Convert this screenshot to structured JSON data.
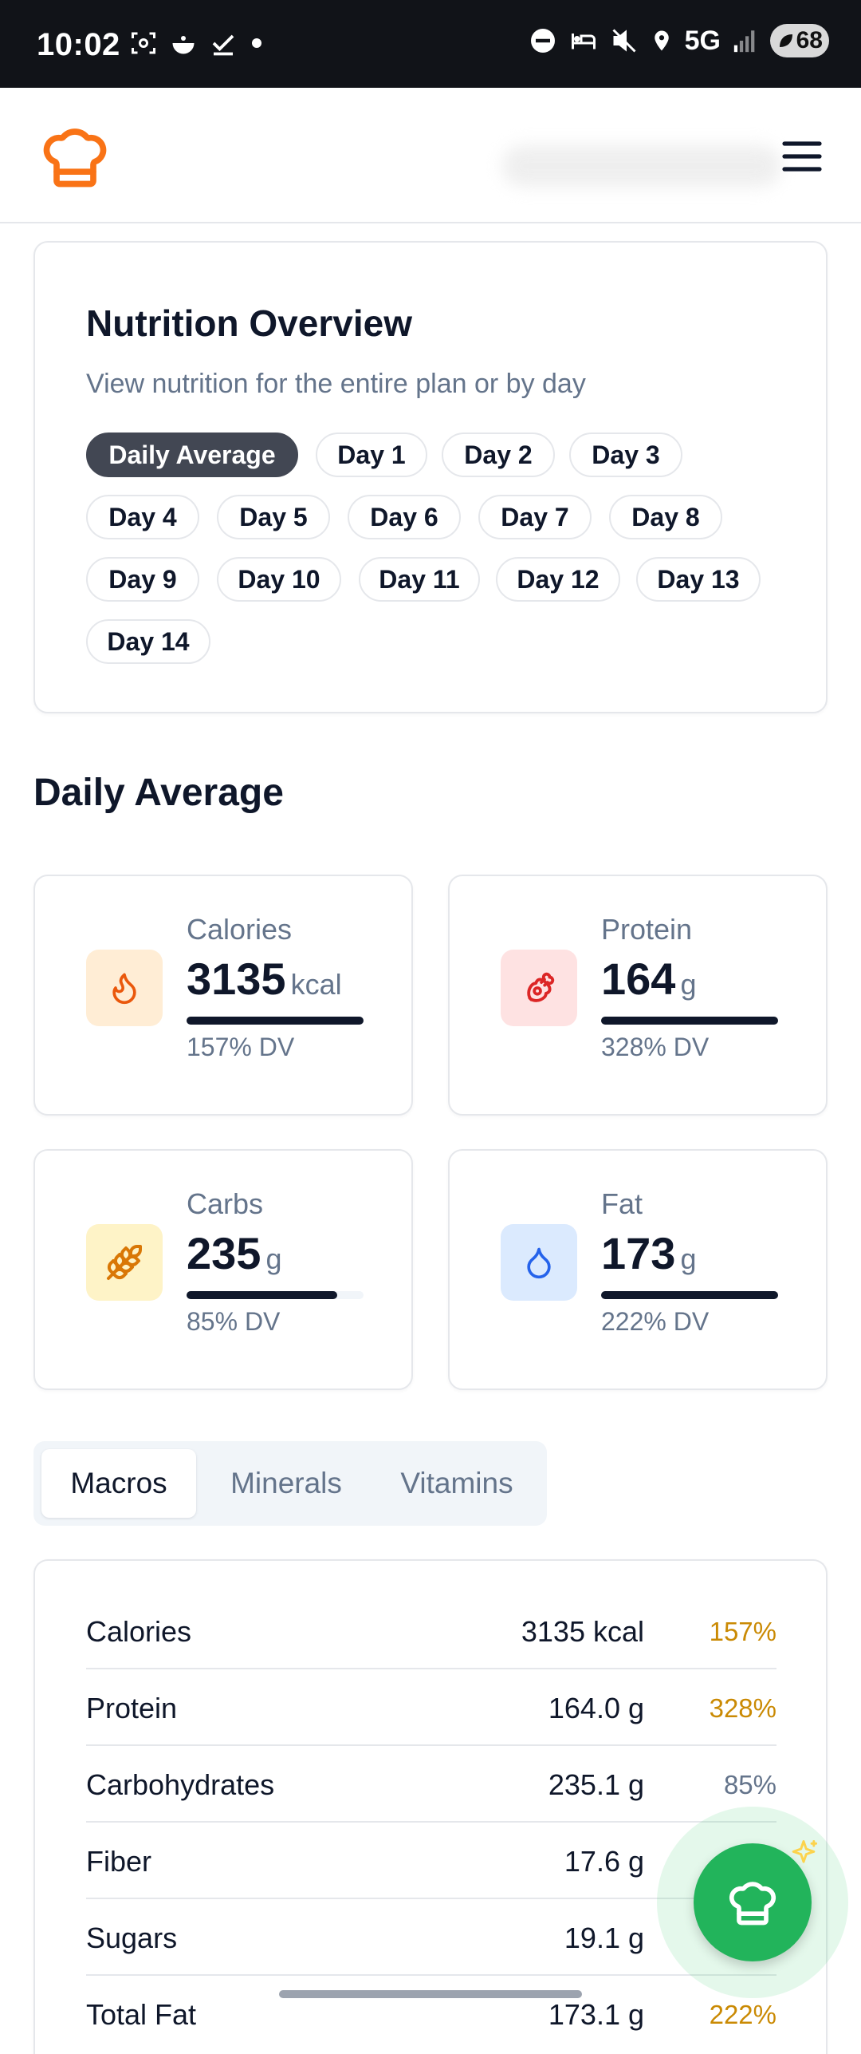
{
  "status_bar": {
    "time": "10:02",
    "network": "5G",
    "battery": "68"
  },
  "overview": {
    "title": "Nutrition Overview",
    "subtitle": "View nutrition for the entire plan or by day",
    "pills": [
      "Daily Average",
      "Day 1",
      "Day 2",
      "Day 3",
      "Day 4",
      "Day 5",
      "Day 6",
      "Day 7",
      "Day 8",
      "Day 9",
      "Day 10",
      "Day 11",
      "Day 12",
      "Day 13",
      "Day 14"
    ],
    "active_pill": "Daily Average"
  },
  "section_title": "Daily Average",
  "stats": {
    "calories": {
      "label": "Calories",
      "value": "3135",
      "unit": "kcal",
      "dv": "157% DV",
      "progress": 1.0
    },
    "protein": {
      "label": "Protein",
      "value": "164",
      "unit": "g",
      "dv": "328% DV",
      "progress": 1.0
    },
    "carbs": {
      "label": "Carbs",
      "value": "235",
      "unit": "g",
      "dv": "85% DV",
      "progress": 0.85
    },
    "fat": {
      "label": "Fat",
      "value": "173",
      "unit": "g",
      "dv": "222% DV",
      "progress": 1.0
    }
  },
  "tabs": {
    "macros": "Macros",
    "minerals": "Minerals",
    "vitamins": "Vitamins",
    "active": "Macros"
  },
  "macros_table": [
    {
      "name": "Calories",
      "value": "3135 kcal",
      "pct": "157%"
    },
    {
      "name": "Protein",
      "value": "164.0 g",
      "pct": "328%"
    },
    {
      "name": "Carbohydrates",
      "value": "235.1 g",
      "pct": "85%"
    },
    {
      "name": "Fiber",
      "value": "17.6 g",
      "pct": ""
    },
    {
      "name": "Sugars",
      "value": "19.1 g",
      "pct": ""
    },
    {
      "name": "Total Fat",
      "value": "173.1 g",
      "pct": "222%"
    }
  ],
  "colors": {
    "accent_orange": "#f97316",
    "pct_over": "#ca8a04",
    "pct_under": "#64748b",
    "fab_green": "#22b45b"
  }
}
